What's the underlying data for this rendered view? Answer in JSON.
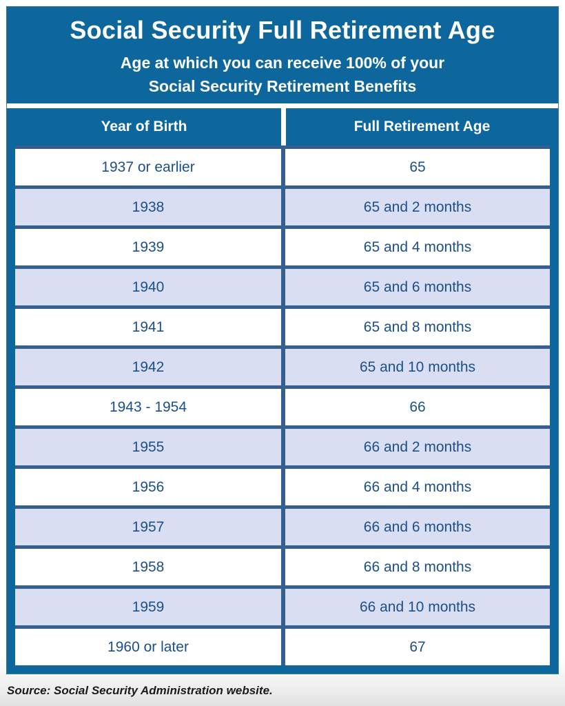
{
  "header": {
    "title": "Social Security Full Retirement Age",
    "subtitle_line1": "Age at which you can receive 100% of your",
    "subtitle_line2": "Social Security Retirement Benefits"
  },
  "table": {
    "columns": [
      "Year of Birth",
      "Full Retirement Age"
    ],
    "rows": [
      [
        "1937 or earlier",
        "65"
      ],
      [
        "1938",
        "65 and 2 months"
      ],
      [
        "1939",
        "65 and 4 months"
      ],
      [
        "1940",
        "65 and 6 months"
      ],
      [
        "1941",
        "65 and 8 months"
      ],
      [
        "1942",
        "65 and 10 months"
      ],
      [
        "1943 - 1954",
        "66"
      ],
      [
        "1955",
        "66 and 2 months"
      ],
      [
        "1956",
        "66 and 4 months"
      ],
      [
        "1957",
        "66 and 6 months"
      ],
      [
        "1958",
        "66 and 8 months"
      ],
      [
        "1959",
        "66 and 10 months"
      ],
      [
        "1960 or later",
        "67"
      ]
    ]
  },
  "footer": {
    "source": "Source: Social Security Administration website."
  },
  "colors": {
    "card_blue": "#0E679C",
    "row_alt_lavender": "#D9DEF2",
    "grid_navy": "#365F91",
    "cell_text_navy": "#1B4F8A",
    "header_text": "#FFFFFF"
  },
  "chart_data": {
    "type": "table",
    "title": "Social Security Full Retirement Age",
    "subtitle": "Age at which you can receive 100% of your Social Security Retirement Benefits",
    "columns": [
      "Year of Birth",
      "Full Retirement Age"
    ],
    "rows": [
      [
        "1937 or earlier",
        "65"
      ],
      [
        "1938",
        "65 and 2 months"
      ],
      [
        "1939",
        "65 and 4 months"
      ],
      [
        "1940",
        "65 and 6 months"
      ],
      [
        "1941",
        "65 and 8 months"
      ],
      [
        "1942",
        "65 and 10 months"
      ],
      [
        "1943 - 1954",
        "66"
      ],
      [
        "1955",
        "66 and 2 months"
      ],
      [
        "1956",
        "66 and 4 months"
      ],
      [
        "1957",
        "66 and 6 months"
      ],
      [
        "1958",
        "66 and 8 months"
      ],
      [
        "1959",
        "66 and 10 months"
      ],
      [
        "1960 or later",
        "67"
      ]
    ],
    "source": "Source: Social Security Administration website.",
    "layout": {
      "row_striping": "odd rows white, even rows lavender",
      "grid": "navy horizontal and vertical separators",
      "header_style": "white bold text on blue"
    }
  }
}
